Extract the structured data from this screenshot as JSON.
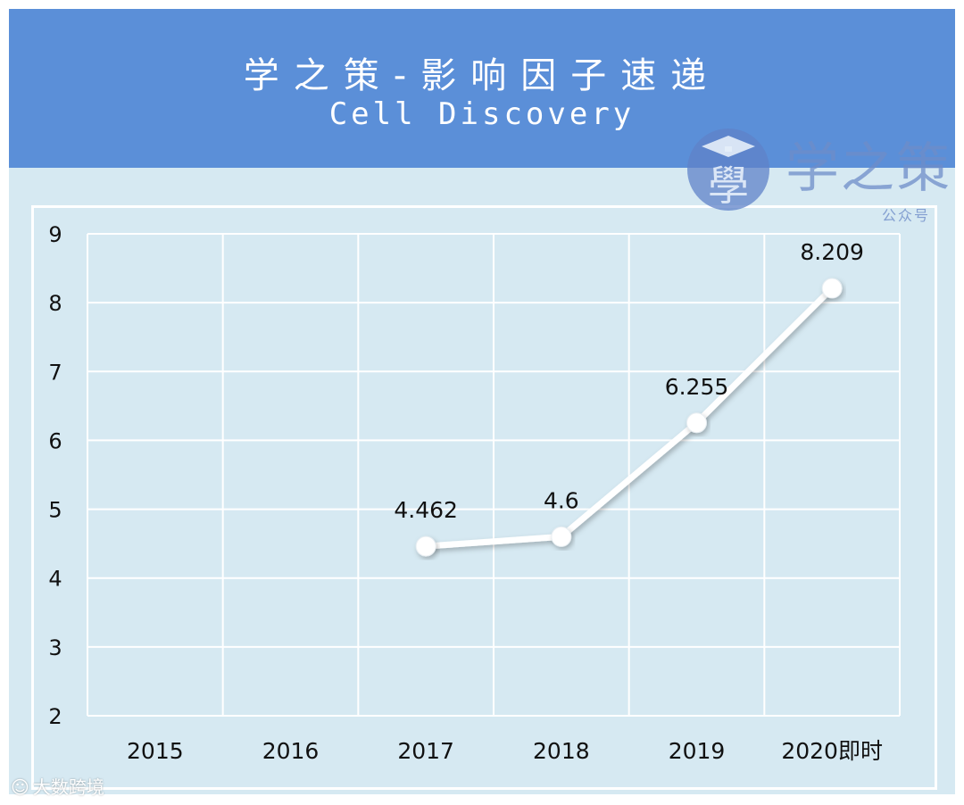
{
  "header": {
    "title": "学之策-影响因子速递",
    "subtitle": "Cell Discovery"
  },
  "logo": {
    "badge_char": "學",
    "name": "学之策",
    "caption": "公众号"
  },
  "footer_watermark": "大数跨境",
  "colors": {
    "header_bg": "#5b8fd8",
    "card_bg": "#d6e9f2",
    "line": "#ffffff",
    "grid": "#ffffff"
  },
  "chart_data": {
    "type": "line",
    "categories": [
      "2015",
      "2016",
      "2017",
      "2018",
      "2019",
      "2020即时"
    ],
    "series": [
      {
        "values": [
          null,
          null,
          4.462,
          4.6,
          6.255,
          8.209
        ]
      }
    ],
    "data_labels": [
      "",
      "",
      "4.462",
      "4.6",
      "6.255",
      "8.209"
    ],
    "y_ticks": [
      "2",
      "3",
      "4",
      "5",
      "6",
      "7",
      "8",
      "9"
    ],
    "ylim": [
      2,
      9
    ],
    "grid": true,
    "legend": "none"
  }
}
